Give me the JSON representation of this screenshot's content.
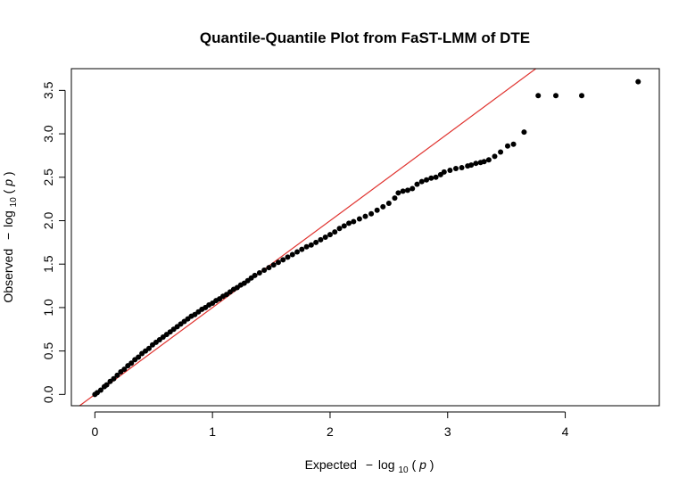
{
  "chart_data": {
    "type": "scatter",
    "title": "Quantile-Quantile Plot from FaST-LMM of DTE",
    "xlabel": {
      "prefix": "Expected",
      "minus": "−",
      "log": "log",
      "base": "10",
      "open": "(",
      "var": "p",
      "close": ")"
    },
    "ylabel": {
      "prefix": "Observed",
      "minus": "−",
      "log": "log",
      "base": "10",
      "open": "(",
      "var": "p",
      "close": ")"
    },
    "xlim": [
      -0.2,
      4.8
    ],
    "ylim": [
      -0.13,
      3.75
    ],
    "xticks": [
      0,
      1,
      2,
      3,
      4
    ],
    "xtick_labels": [
      "0",
      "1",
      "2",
      "3",
      "4"
    ],
    "yticks": [
      0.0,
      0.5,
      1.0,
      1.5,
      2.0,
      2.5,
      3.0,
      3.5
    ],
    "ytick_labels": [
      "0.0",
      "0.5",
      "1.0",
      "1.5",
      "2.0",
      "2.5",
      "3.0",
      "3.5"
    ],
    "grid": false,
    "reference_line": {
      "slope": 1,
      "intercept": 0,
      "color": "#e0332f"
    },
    "point_color": "#000000",
    "points": [
      [
        0.0,
        0.0
      ],
      [
        0.02,
        0.02
      ],
      [
        0.05,
        0.05
      ],
      [
        0.08,
        0.09
      ],
      [
        0.1,
        0.11
      ],
      [
        0.13,
        0.15
      ],
      [
        0.16,
        0.18
      ],
      [
        0.19,
        0.22
      ],
      [
        0.22,
        0.26
      ],
      [
        0.25,
        0.29
      ],
      [
        0.28,
        0.33
      ],
      [
        0.31,
        0.36
      ],
      [
        0.34,
        0.4
      ],
      [
        0.37,
        0.43
      ],
      [
        0.4,
        0.47
      ],
      [
        0.43,
        0.5
      ],
      [
        0.46,
        0.53
      ],
      [
        0.49,
        0.57
      ],
      [
        0.52,
        0.6
      ],
      [
        0.55,
        0.63
      ],
      [
        0.58,
        0.66
      ],
      [
        0.61,
        0.69
      ],
      [
        0.64,
        0.72
      ],
      [
        0.67,
        0.75
      ],
      [
        0.7,
        0.78
      ],
      [
        0.73,
        0.81
      ],
      [
        0.76,
        0.84
      ],
      [
        0.79,
        0.87
      ],
      [
        0.82,
        0.9
      ],
      [
        0.85,
        0.92
      ],
      [
        0.88,
        0.95
      ],
      [
        0.91,
        0.98
      ],
      [
        0.94,
        1.0
      ],
      [
        0.97,
        1.03
      ],
      [
        1.0,
        1.05
      ],
      [
        1.03,
        1.08
      ],
      [
        1.06,
        1.1
      ],
      [
        1.09,
        1.13
      ],
      [
        1.12,
        1.15
      ],
      [
        1.15,
        1.18
      ],
      [
        1.18,
        1.21
      ],
      [
        1.21,
        1.23
      ],
      [
        1.24,
        1.26
      ],
      [
        1.27,
        1.28
      ],
      [
        1.3,
        1.31
      ],
      [
        1.33,
        1.34
      ],
      [
        1.36,
        1.37
      ],
      [
        1.4,
        1.4
      ],
      [
        1.44,
        1.43
      ],
      [
        1.48,
        1.46
      ],
      [
        1.52,
        1.49
      ],
      [
        1.56,
        1.52
      ],
      [
        1.6,
        1.55
      ],
      [
        1.64,
        1.58
      ],
      [
        1.68,
        1.61
      ],
      [
        1.72,
        1.64
      ],
      [
        1.76,
        1.67
      ],
      [
        1.8,
        1.7
      ],
      [
        1.84,
        1.72
      ],
      [
        1.88,
        1.75
      ],
      [
        1.92,
        1.78
      ],
      [
        1.96,
        1.81
      ],
      [
        2.0,
        1.84
      ],
      [
        2.04,
        1.87
      ],
      [
        2.08,
        1.91
      ],
      [
        2.12,
        1.94
      ],
      [
        2.16,
        1.97
      ],
      [
        2.2,
        1.99
      ],
      [
        2.25,
        2.02
      ],
      [
        2.3,
        2.05
      ],
      [
        2.35,
        2.08
      ],
      [
        2.4,
        2.12
      ],
      [
        2.45,
        2.16
      ],
      [
        2.5,
        2.2
      ],
      [
        2.55,
        2.26
      ],
      [
        2.58,
        2.32
      ],
      [
        2.62,
        2.34
      ],
      [
        2.66,
        2.35
      ],
      [
        2.7,
        2.37
      ],
      [
        2.74,
        2.42
      ],
      [
        2.78,
        2.45
      ],
      [
        2.82,
        2.47
      ],
      [
        2.86,
        2.49
      ],
      [
        2.9,
        2.5
      ],
      [
        2.94,
        2.53
      ],
      [
        2.97,
        2.56
      ],
      [
        3.02,
        2.58
      ],
      [
        3.07,
        2.6
      ],
      [
        3.12,
        2.61
      ],
      [
        3.17,
        2.63
      ],
      [
        3.2,
        2.64
      ],
      [
        3.24,
        2.66
      ],
      [
        3.28,
        2.67
      ],
      [
        3.31,
        2.68
      ],
      [
        3.35,
        2.7
      ],
      [
        3.4,
        2.74
      ],
      [
        3.45,
        2.79
      ],
      [
        3.51,
        2.86
      ],
      [
        3.56,
        2.88
      ],
      [
        3.65,
        3.02
      ],
      [
        3.77,
        3.44
      ],
      [
        3.92,
        3.44
      ],
      [
        4.14,
        3.44
      ],
      [
        4.62,
        3.6
      ]
    ]
  }
}
